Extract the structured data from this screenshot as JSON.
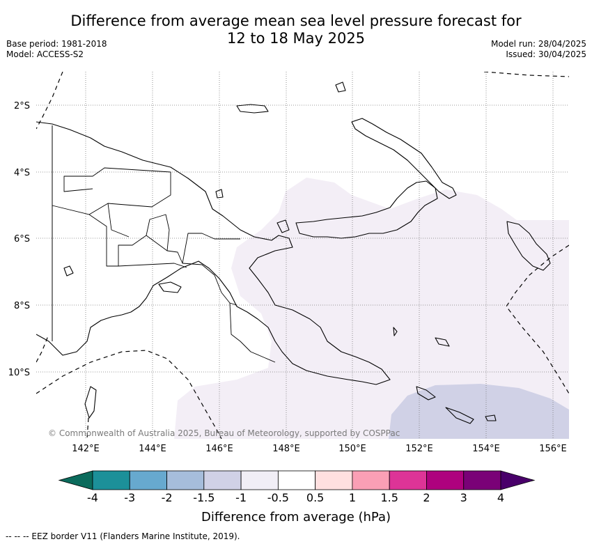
{
  "title_line1": "Difference from average mean sea level pressure forecast for",
  "title_line2": "12 to 18 May 2025",
  "meta_left": [
    "Base period: 1981-2018",
    "Model: ACCESS-S2"
  ],
  "meta_right": [
    "Model run: 28/04/2025",
    "Issued: 30/04/2025"
  ],
  "lat_ticks": [
    "2°S",
    "4°S",
    "6°S",
    "8°S",
    "10°S"
  ],
  "lon_ticks": [
    "142°E",
    "144°E",
    "146°E",
    "148°E",
    "150°E",
    "152°E",
    "154°E",
    "156°E"
  ],
  "copyright": "© Commonwealth of Australia 2025, Bureau of Meteorology, supported by COSPPac",
  "colorbar": {
    "ticks": [
      "-4",
      "-3",
      "-2",
      "-1.5",
      "-1",
      "-0.5",
      "0.5",
      "1",
      "1.5",
      "2",
      "3",
      "4"
    ],
    "colors": [
      "#0b6b5c",
      "#1c9099",
      "#67a9cf",
      "#a6bddb",
      "#d0d1e6",
      "#f1eef6",
      "#ffffff",
      "#ffe0e0",
      "#fa9fb5",
      "#dd3497",
      "#ae017e",
      "#7a0177",
      "#49006a"
    ],
    "label": "Difference from average (hPa)"
  },
  "footnote": "--  --  -- EEZ border V11 (Flanders Marine Institute, 2019)."
}
